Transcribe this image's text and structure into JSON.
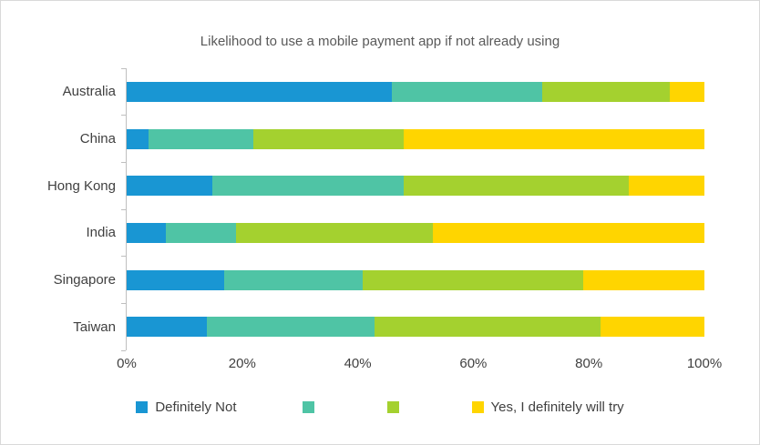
{
  "title": "Likelihood to use a mobile payment app if not already using",
  "chart_data": {
    "type": "bar",
    "orientation": "horizontal",
    "stacked": true,
    "title": "Likelihood to use a mobile payment app if not already using",
    "categories": [
      "Australia",
      "China",
      "Hong Kong",
      "India",
      "Singapore",
      "Taiwan"
    ],
    "series": [
      {
        "name": "Definitely Not",
        "color": "#1996D3",
        "values": [
          46,
          4,
          15,
          7,
          17,
          14
        ]
      },
      {
        "name": "",
        "color": "#4FC4A5",
        "values": [
          26,
          18,
          33,
          12,
          24,
          29
        ]
      },
      {
        "name": "",
        "color": "#A4D12F",
        "values": [
          22,
          26,
          39,
          34,
          38,
          39
        ]
      },
      {
        "name": "Yes, I definitely will try",
        "color": "#FFD500",
        "values": [
          6,
          52,
          13,
          47,
          21,
          18
        ]
      }
    ],
    "x_ticks": [
      "0%",
      "20%",
      "40%",
      "60%",
      "80%",
      "100%"
    ],
    "xlim": [
      0,
      100
    ],
    "grid": false,
    "legend_position": "bottom"
  }
}
